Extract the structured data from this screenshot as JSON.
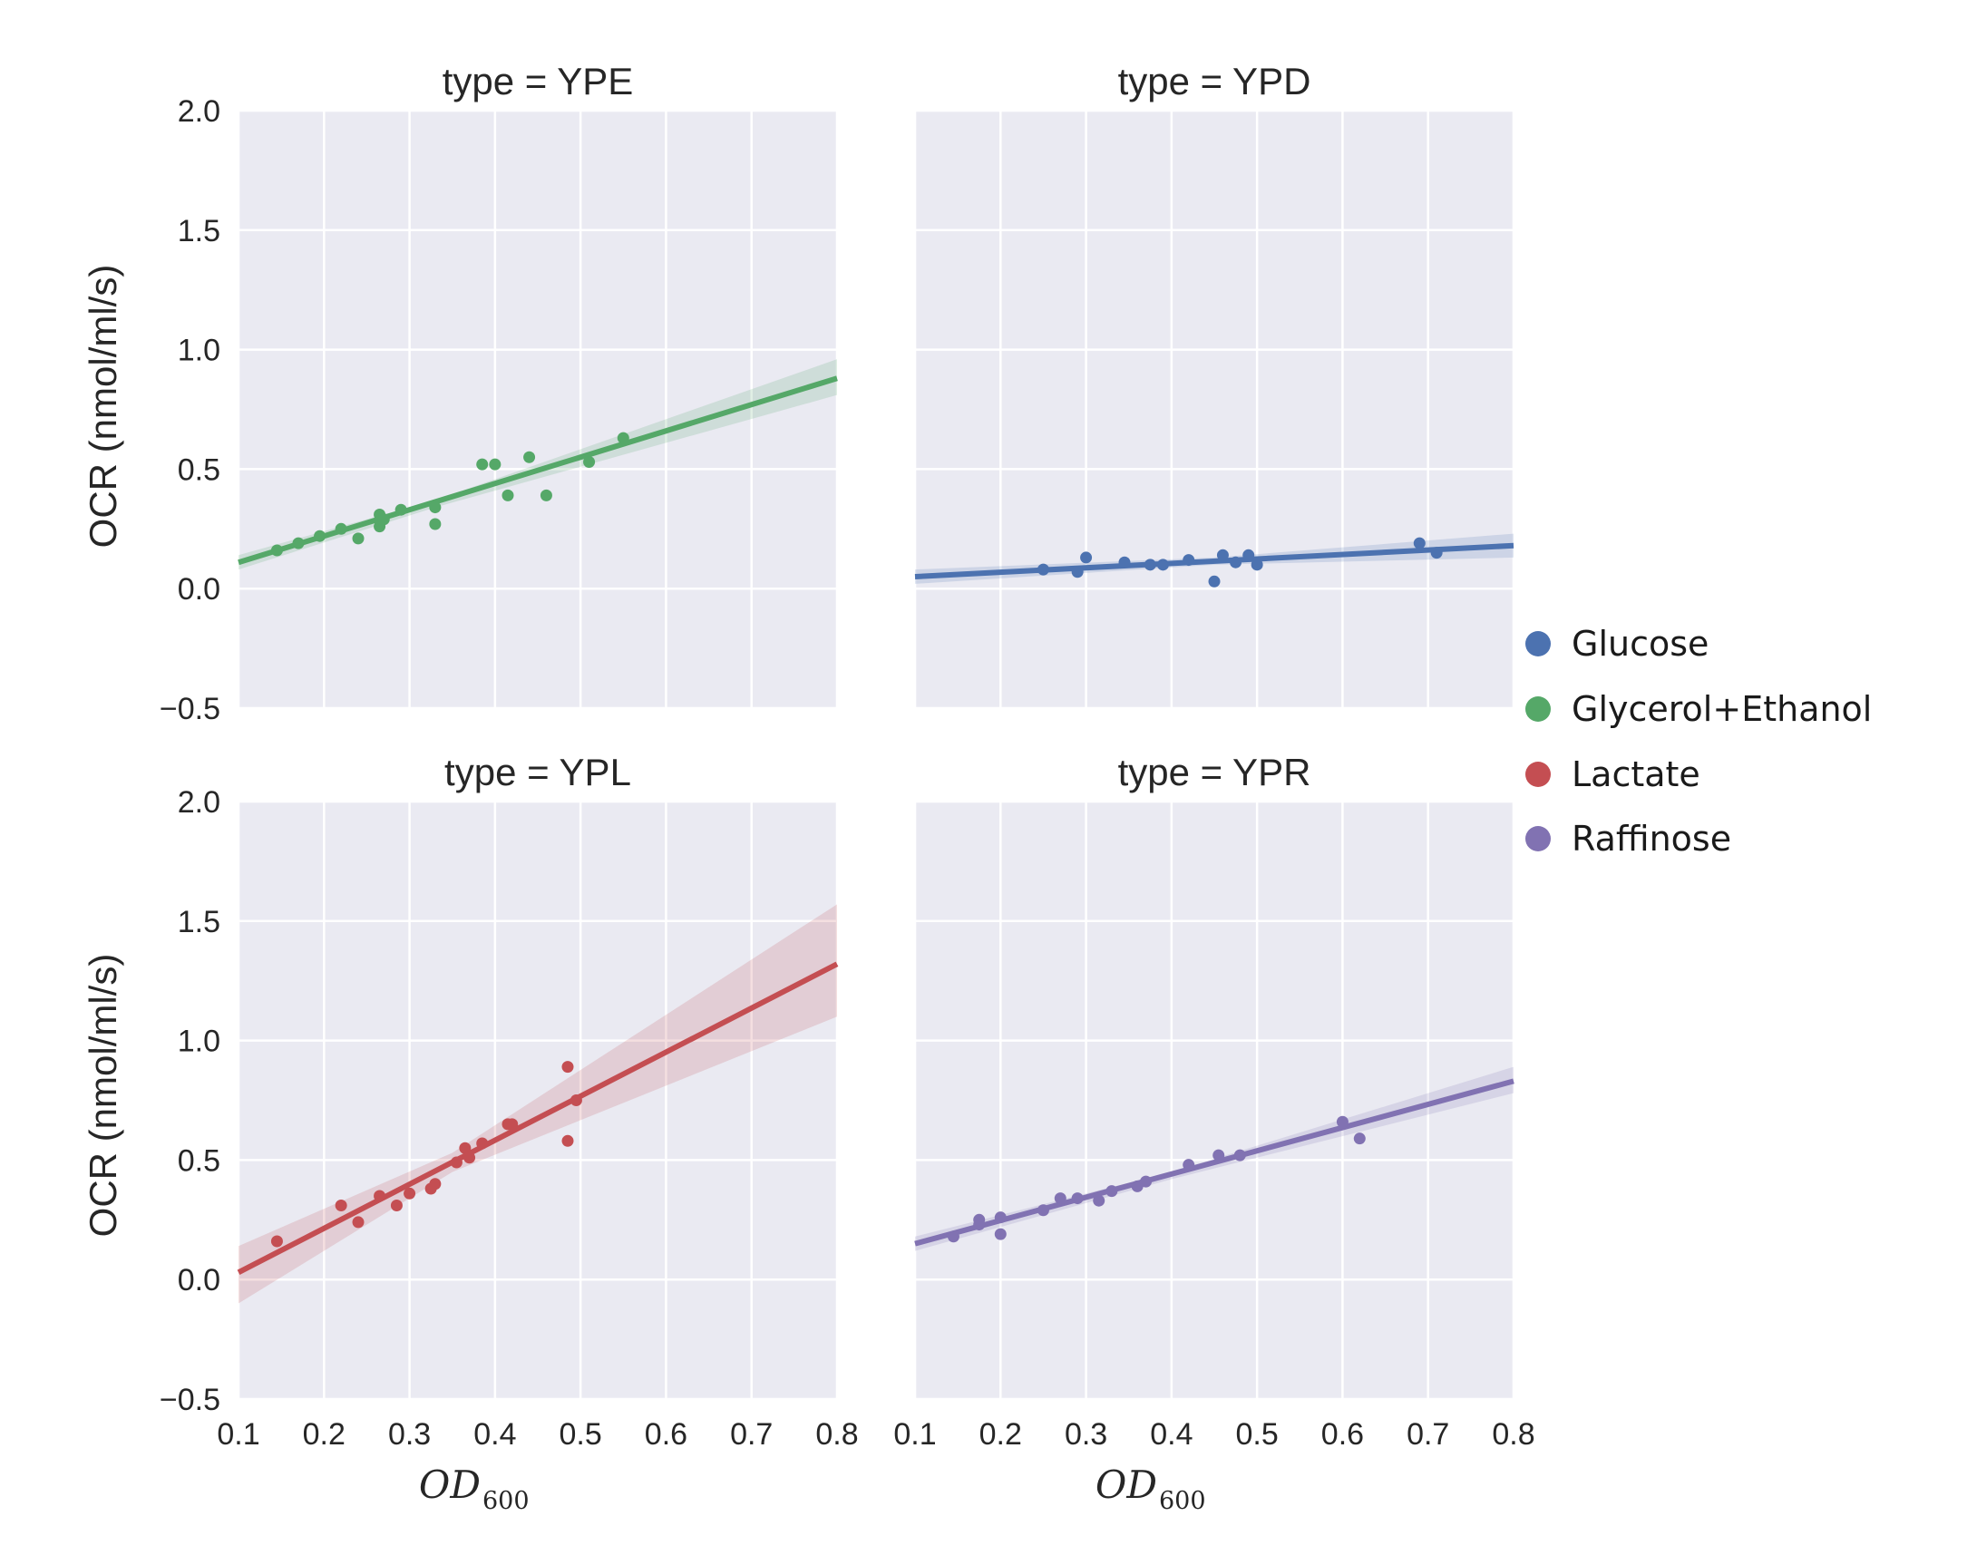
{
  "chart_data": {
    "type": "scatter",
    "ylabel": "OCR (nmol/ml/s)",
    "xlabel_main": "OD",
    "xlabel_sub": "600",
    "xlim": [
      0.1,
      0.8
    ],
    "ylim": [
      -0.5,
      2.0
    ],
    "xticks": [
      "0.1",
      "0.2",
      "0.3",
      "0.4",
      "0.5",
      "0.6",
      "0.7",
      "0.8"
    ],
    "yticks": [
      "−0.5",
      "0.0",
      "0.5",
      "1.0",
      "1.5",
      "2.0"
    ],
    "legend": [
      {
        "label": "Glucose",
        "color": "#4c72b0"
      },
      {
        "label": "Glycerol+Ethanol",
        "color": "#55a868"
      },
      {
        "label": "Lactate",
        "color": "#c44e52"
      },
      {
        "label": "Raffinose",
        "color": "#8172b2"
      }
    ],
    "panels": [
      {
        "title": "type = YPE",
        "color": "#55a868",
        "points": [
          [
            0.145,
            0.16
          ],
          [
            0.17,
            0.19
          ],
          [
            0.195,
            0.22
          ],
          [
            0.22,
            0.25
          ],
          [
            0.24,
            0.21
          ],
          [
            0.265,
            0.31
          ],
          [
            0.265,
            0.26
          ],
          [
            0.27,
            0.29
          ],
          [
            0.29,
            0.33
          ],
          [
            0.33,
            0.34
          ],
          [
            0.33,
            0.27
          ],
          [
            0.385,
            0.52
          ],
          [
            0.4,
            0.52
          ],
          [
            0.415,
            0.39
          ],
          [
            0.44,
            0.55
          ],
          [
            0.46,
            0.39
          ],
          [
            0.51,
            0.53
          ],
          [
            0.55,
            0.63
          ]
        ],
        "fit": [
          [
            0.1,
            0.11
          ],
          [
            0.8,
            0.88
          ]
        ],
        "ci_lower": [
          [
            0.1,
            0.08
          ],
          [
            0.33,
            0.34
          ],
          [
            0.8,
            0.81
          ]
        ],
        "ci_upper": [
          [
            0.1,
            0.14
          ],
          [
            0.33,
            0.37
          ],
          [
            0.8,
            0.96
          ]
        ]
      },
      {
        "title": "type = YPD",
        "color": "#4c72b0",
        "points": [
          [
            0.25,
            0.08
          ],
          [
            0.29,
            0.07
          ],
          [
            0.3,
            0.13
          ],
          [
            0.345,
            0.11
          ],
          [
            0.375,
            0.1
          ],
          [
            0.39,
            0.1
          ],
          [
            0.42,
            0.12
          ],
          [
            0.45,
            0.03
          ],
          [
            0.46,
            0.14
          ],
          [
            0.475,
            0.11
          ],
          [
            0.49,
            0.14
          ],
          [
            0.5,
            0.1
          ],
          [
            0.69,
            0.19
          ],
          [
            0.71,
            0.15
          ]
        ],
        "fit": [
          [
            0.1,
            0.05
          ],
          [
            0.8,
            0.18
          ]
        ],
        "ci_lower": [
          [
            0.1,
            0.02
          ],
          [
            0.45,
            0.1
          ],
          [
            0.8,
            0.13
          ]
        ],
        "ci_upper": [
          [
            0.1,
            0.08
          ],
          [
            0.45,
            0.13
          ],
          [
            0.8,
            0.23
          ]
        ]
      },
      {
        "title": "type = YPL",
        "color": "#c44e52",
        "points": [
          [
            0.145,
            0.16
          ],
          [
            0.22,
            0.31
          ],
          [
            0.24,
            0.24
          ],
          [
            0.265,
            0.35
          ],
          [
            0.285,
            0.31
          ],
          [
            0.3,
            0.36
          ],
          [
            0.325,
            0.38
          ],
          [
            0.33,
            0.4
          ],
          [
            0.355,
            0.49
          ],
          [
            0.365,
            0.55
          ],
          [
            0.37,
            0.51
          ],
          [
            0.385,
            0.57
          ],
          [
            0.415,
            0.65
          ],
          [
            0.42,
            0.65
          ],
          [
            0.485,
            0.89
          ],
          [
            0.485,
            0.58
          ],
          [
            0.495,
            0.75
          ]
        ],
        "fit": [
          [
            0.1,
            0.03
          ],
          [
            0.8,
            1.32
          ]
        ],
        "ci_lower": [
          [
            0.1,
            -0.1
          ],
          [
            0.35,
            0.45
          ],
          [
            0.8,
            1.1
          ]
        ],
        "ci_upper": [
          [
            0.1,
            0.14
          ],
          [
            0.35,
            0.53
          ],
          [
            0.8,
            1.57
          ]
        ]
      },
      {
        "title": "type = YPR",
        "color": "#8172b2",
        "points": [
          [
            0.145,
            0.18
          ],
          [
            0.175,
            0.25
          ],
          [
            0.175,
            0.23
          ],
          [
            0.2,
            0.26
          ],
          [
            0.2,
            0.19
          ],
          [
            0.25,
            0.29
          ],
          [
            0.27,
            0.34
          ],
          [
            0.29,
            0.34
          ],
          [
            0.315,
            0.33
          ],
          [
            0.33,
            0.37
          ],
          [
            0.36,
            0.39
          ],
          [
            0.37,
            0.41
          ],
          [
            0.42,
            0.48
          ],
          [
            0.455,
            0.52
          ],
          [
            0.48,
            0.52
          ],
          [
            0.6,
            0.66
          ],
          [
            0.62,
            0.59
          ]
        ],
        "fit": [
          [
            0.1,
            0.15
          ],
          [
            0.8,
            0.83
          ]
        ],
        "ci_lower": [
          [
            0.1,
            0.12
          ],
          [
            0.4,
            0.42
          ],
          [
            0.8,
            0.78
          ]
        ],
        "ci_upper": [
          [
            0.1,
            0.18
          ],
          [
            0.4,
            0.45
          ],
          [
            0.8,
            0.89
          ]
        ]
      }
    ]
  }
}
